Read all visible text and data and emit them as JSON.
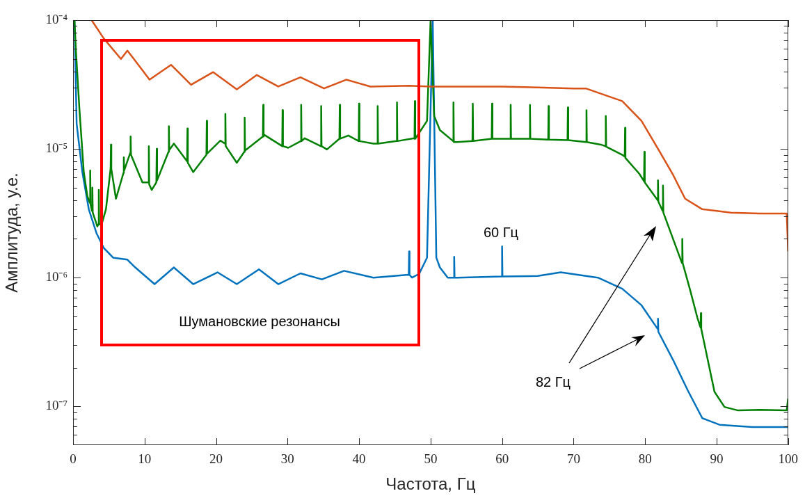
{
  "chart_data": {
    "type": "line",
    "xlabel": "Частота, Гц",
    "ylabel": "Амплитуда, у.е.",
    "log": true,
    "grid": false,
    "legend": false,
    "xlim": [
      0,
      100
    ],
    "xticks": [
      0,
      10,
      20,
      30,
      40,
      50,
      60,
      70,
      80,
      90,
      100
    ],
    "ylim": [
      5e-08,
      0.0001
    ],
    "yticks": [
      {
        "value": 6e-08,
        "label": null
      },
      {
        "value": 7e-08,
        "label": null
      },
      {
        "value": 8e-08,
        "label": null
      },
      {
        "value": 9e-08,
        "label": null
      },
      {
        "value": 1e-07,
        "label": "10⁻⁷"
      },
      {
        "value": 2e-07,
        "label": null
      },
      {
        "value": 3e-07,
        "label": null
      },
      {
        "value": 4e-07,
        "label": null
      },
      {
        "value": 5e-07,
        "label": null
      },
      {
        "value": 6e-07,
        "label": null
      },
      {
        "value": 7e-07,
        "label": null
      },
      {
        "value": 8e-07,
        "label": null
      },
      {
        "value": 9e-07,
        "label": null
      },
      {
        "value": 1e-06,
        "label": "10⁻⁶"
      },
      {
        "value": 2e-06,
        "label": null
      },
      {
        "value": 3e-06,
        "label": null
      },
      {
        "value": 4e-06,
        "label": null
      },
      {
        "value": 5e-06,
        "label": null
      },
      {
        "value": 6e-06,
        "label": null
      },
      {
        "value": 7e-06,
        "label": null
      },
      {
        "value": 8e-06,
        "label": null
      },
      {
        "value": 9e-06,
        "label": null
      },
      {
        "value": 1e-05,
        "label": "10⁻⁵"
      },
      {
        "value": 2e-05,
        "label": null
      },
      {
        "value": 3e-05,
        "label": null
      },
      {
        "value": 4e-05,
        "label": null
      },
      {
        "value": 5e-05,
        "label": null
      },
      {
        "value": 6e-05,
        "label": null
      },
      {
        "value": 7e-05,
        "label": null
      },
      {
        "value": 8e-05,
        "label": null
      },
      {
        "value": 9e-05,
        "label": null
      },
      {
        "value": 0.0001,
        "label": "10⁻⁴"
      }
    ],
    "series": [
      {
        "color": "#d95319",
        "x": [
          2.6,
          4.3,
          6.7,
          7.6,
          8.5,
          10.7,
          13.7,
          16.5,
          19.6,
          22.9,
          25.7,
          28.7,
          31.8,
          35.1,
          38.2,
          41.6,
          47,
          50,
          55,
          60,
          65,
          70,
          71.7,
          76.8,
          79.5,
          81.9,
          83.9,
          85.6,
          88,
          92,
          96,
          99.8,
          100
        ],
        "values": [
          0.0001,
          7.2e-05,
          5e-05,
          5.8e-05,
          5e-05,
          3.45e-05,
          4.5e-05,
          3.15e-05,
          3.95e-05,
          2.9e-05,
          3.75e-05,
          3.05e-05,
          3.6e-05,
          2.95e-05,
          3.45e-05,
          3.05e-05,
          3.1e-05,
          3.05e-05,
          3.05e-05,
          3.05e-05,
          3e-05,
          2.95e-05,
          2.95e-05,
          2.35e-05,
          1.65e-05,
          9.8e-06,
          6.3e-06,
          4.1e-06,
          3.4e-06,
          3.2e-06,
          3.15e-06,
          3.15e-06,
          1.6e-06
        ]
      },
      {
        "color": "#008000",
        "x": [
          0.2,
          0.4,
          0.9,
          1.5,
          2.0,
          2.35,
          2.4,
          2.45,
          2.6,
          2.65,
          2.7,
          2.75,
          3.4,
          3.55,
          3.6,
          3.65,
          4.0,
          4.6,
          5.25,
          5.3,
          5.35,
          6.0,
          7.05,
          7.1,
          7.15,
          8.0,
          8.05,
          8.1,
          9.7,
          10.55,
          10.6,
          10.65,
          11.0,
          11.65,
          11.7,
          11.75,
          13.35,
          13.4,
          13.45,
          14.1,
          15.95,
          16.0,
          16.05,
          16.8,
          18.65,
          18.7,
          18.75,
          20.6,
          21.25,
          21.3,
          21.35,
          22.9,
          23.95,
          24.0,
          24.05,
          26.55,
          26.6,
          26.65,
          26.7,
          29.25,
          29.3,
          29.35,
          30.1,
          31.85,
          31.9,
          31.95,
          32.4,
          34.65,
          34.7,
          34.75,
          35.5,
          37.25,
          37.3,
          37.35,
          38.5,
          39.95,
          40.0,
          40.05,
          42.0,
          42.55,
          42.6,
          42.65,
          45.25,
          45.3,
          45.35,
          47.7,
          47.75,
          47.8,
          47.85,
          49.5,
          50.0,
          50.5,
          51.3,
          53.15,
          53.2,
          53.25,
          53.7,
          55.85,
          55.9,
          55.95,
          58.55,
          58.6,
          58.65,
          61.15,
          61.2,
          61.25,
          63.85,
          63.9,
          63.95,
          66.45,
          66.5,
          66.55,
          69.15,
          69.2,
          69.25,
          71.75,
          71.8,
          71.85,
          73.8,
          74.45,
          74.5,
          74.55,
          76.8,
          77.15,
          77.2,
          77.25,
          79.2,
          79.85,
          79.9,
          79.95,
          81.75,
          81.8,
          81.85,
          82.45,
          82.5,
          82.55,
          85.15,
          85.2,
          85.25,
          86.3,
          87.3,
          87.75,
          87.8,
          87.85,
          89.7,
          91.1,
          93,
          96,
          99.8,
          100
        ],
        "values": [
          0.0001,
          5.8e-05,
          2e-05,
          6.6e-06,
          4.3e-06,
          3.8e-06,
          6.8e-06,
          3.7e-06,
          3.4e-06,
          3.3e-06,
          5e-06,
          3.2e-06,
          2.5e-06,
          2.6e-06,
          4.8e-06,
          2.6e-06,
          2.6e-06,
          3.4e-06,
          7e-06,
          1.08e-05,
          7e-06,
          4.1e-06,
          6.5e-06,
          8.6e-06,
          6.8e-06,
          9.3e-06,
          1.25e-05,
          9e-06,
          5.5e-06,
          5.5e-06,
          1.05e-05,
          5.3e-06,
          4.8e-06,
          5.5e-06,
          1e-05,
          5.7e-06,
          9.5e-06,
          1.5e-05,
          9.8e-06,
          1.1e-05,
          8e-06,
          1.44e-05,
          7.8e-06,
          6.6e-06,
          9e-06,
          1.65e-05,
          9.2e-06,
          1.16e-05,
          1.1e-05,
          1.87e-05,
          1.05e-05,
          7.8e-06,
          9.5e-06,
          1.75e-05,
          9.7e-06,
          1.25e-05,
          2.2e-05,
          1.25e-05,
          1.29e-05,
          1.05e-05,
          2e-05,
          1.05e-05,
          1.02e-05,
          1.15e-05,
          2.2e-05,
          1.15e-05,
          1.21e-05,
          1.05e-05,
          2.15e-05,
          1.05e-05,
          9.9e-06,
          1.2e-05,
          2.2e-05,
          1.2e-05,
          1.27e-05,
          1.15e-05,
          2.25e-05,
          1.15e-05,
          1.1e-05,
          1.1e-05,
          2.15e-05,
          1.1e-05,
          1.15e-05,
          2.3e-05,
          1.15e-05,
          1.21e-05,
          1.2e-05,
          2.35e-05,
          1.2e-05,
          1.65e-05,
          0.0001,
          1.8e-05,
          1.4e-05,
          1.15e-05,
          2.3e-05,
          1.13e-05,
          1.13e-05,
          1.15e-05,
          2.25e-05,
          1.15e-05,
          1.2e-05,
          2.25e-05,
          1.2e-05,
          1.2e-05,
          2.2e-05,
          1.2e-05,
          1.2e-05,
          2.2e-05,
          1.2e-05,
          1.18e-05,
          2.15e-05,
          1.18e-05,
          1.17e-05,
          2.1e-05,
          1.17e-05,
          1.13e-05,
          2e-05,
          1.13e-05,
          1.08e-05,
          1.05e-05,
          1.8e-05,
          1.04e-05,
          9e-06,
          8.7e-06,
          1.46e-05,
          8.5e-06,
          6.4e-06,
          5.6e-06,
          9.5e-06,
          5.5e-06,
          4e-06,
          5.7e-06,
          3.9e-06,
          3.3e-06,
          5.2e-06,
          3.2e-06,
          1.3e-06,
          2e-06,
          1.3e-06,
          8e-07,
          4.9e-07,
          4.1e-07,
          5.3e-07,
          4e-07,
          1.3e-07,
          9.9e-08,
          9.3e-08,
          9.4e-08,
          9.3e-08,
          1.15e-07
        ]
      },
      {
        "color": "#0072bd",
        "x": [
          0.2,
          0.5,
          1.3,
          2.2,
          3.3,
          4.3,
          5.6,
          7.6,
          8.7,
          11.4,
          14.1,
          16.8,
          20.2,
          22.9,
          26,
          28.7,
          31.8,
          34.8,
          37.9,
          42,
          46.6,
          46.95,
          47,
          47.05,
          47.4,
          48.4,
          49.5,
          50.3,
          50.8,
          51.3,
          52.4,
          53.25,
          53.3,
          53.35,
          53.7,
          59.95,
          60,
          60.05,
          65,
          68.2,
          73.4,
          76.8,
          79.5,
          81.75,
          81.8,
          81.85,
          83.9,
          86,
          88,
          90.4,
          95,
          100
        ],
        "values": [
          0.0001,
          1.57e-05,
          6.6e-06,
          3.4e-06,
          2.2e-06,
          1.7e-06,
          1.43e-06,
          1.38e-06,
          1.2e-06,
          8.9e-07,
          1.2e-06,
          8.9e-07,
          1.1e-06,
          8.9e-07,
          1.16e-06,
          8.9e-07,
          1.08e-06,
          9.7e-07,
          1.13e-06,
          1e-06,
          1.05e-06,
          1.05e-06,
          1.6e-06,
          1.05e-06,
          1e-06,
          1.07e-06,
          1.43e-06,
          0.0001,
          1.43e-06,
          1.2e-06,
          1e-06,
          1e-06,
          1.45e-06,
          1e-06,
          1e-06,
          1.02e-06,
          1.75e-06,
          1.02e-06,
          1.03e-06,
          1.1e-06,
          1e-06,
          8.2e-07,
          6.1e-07,
          4e-07,
          4.8e-07,
          3.8e-07,
          2.3e-07,
          1.32e-07,
          8.1e-08,
          7.2e-08,
          6.9e-08,
          6.9e-08
        ]
      }
    ],
    "annotations": [
      "60 Гц",
      "82 Гц",
      "Шумановские резонансы"
    ]
  }
}
